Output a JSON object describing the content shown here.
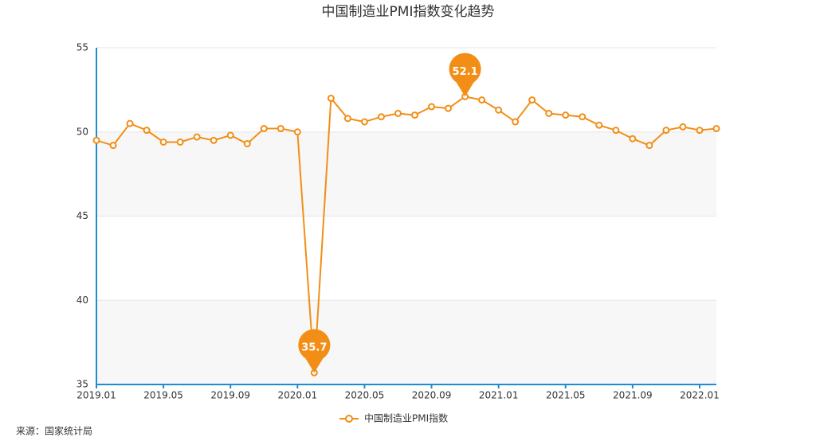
{
  "chart_data": {
    "type": "line",
    "title": "中国制造业PMI指数变化趋势",
    "categories": [
      "2019.01",
      null,
      null,
      null,
      "2019.05",
      null,
      null,
      null,
      "2019.09",
      null,
      null,
      null,
      "2020.01",
      null,
      null,
      null,
      "2020.05",
      null,
      null,
      null,
      "2020.09",
      null,
      null,
      null,
      "2021.01",
      null,
      null,
      null,
      "2021.05",
      null,
      null,
      null,
      "2021.09",
      null,
      null,
      null,
      "2022.01",
      null
    ],
    "series": [
      {
        "name": "中国制造业PMI指数",
        "color": "#f28e16",
        "values": [
          49.5,
          49.2,
          50.5,
          50.1,
          49.4,
          49.4,
          49.7,
          49.5,
          49.8,
          49.3,
          50.2,
          50.2,
          50.0,
          35.7,
          52.0,
          50.8,
          50.6,
          50.9,
          51.1,
          51.0,
          51.5,
          51.4,
          52.1,
          51.9,
          51.3,
          50.6,
          51.9,
          51.1,
          51.0,
          50.9,
          50.4,
          50.1,
          49.6,
          49.2,
          50.1,
          50.3,
          50.1,
          50.2
        ]
      }
    ],
    "ylim": [
      35,
      55
    ],
    "yticks": [
      35,
      40,
      45,
      50,
      55
    ],
    "grid": true,
    "legend": "bottom",
    "source": "来源：国家统计局"
  }
}
